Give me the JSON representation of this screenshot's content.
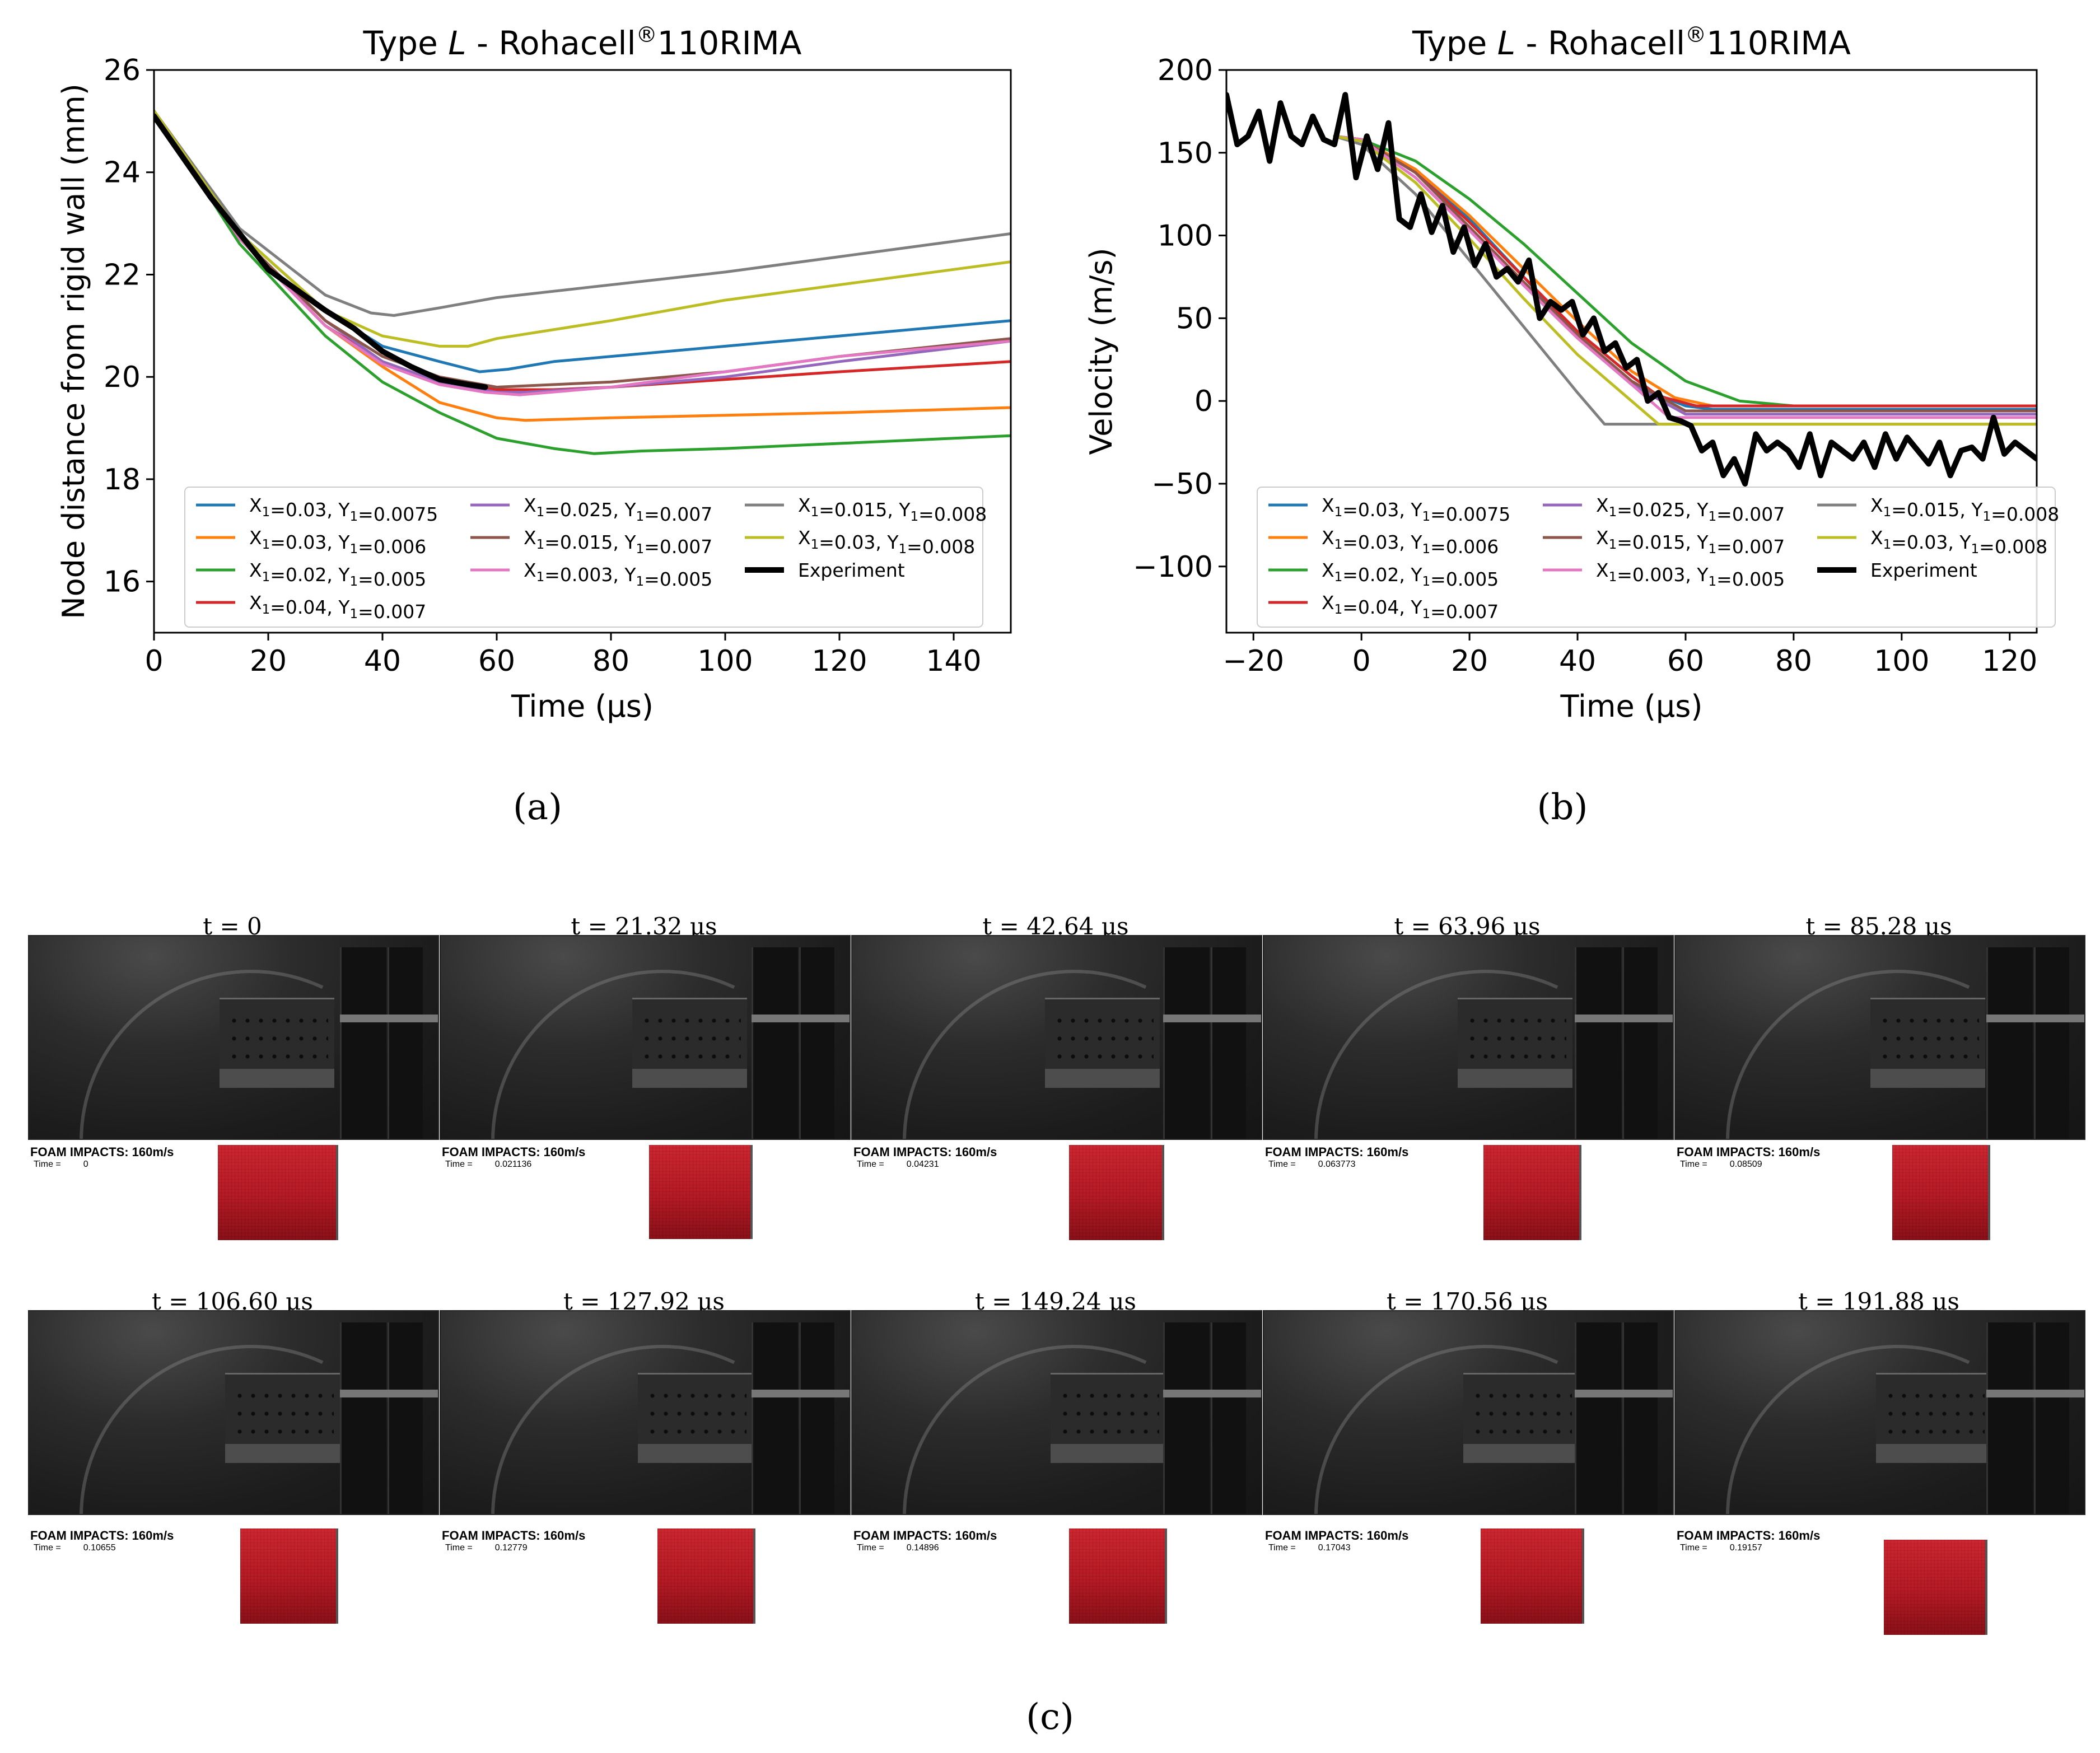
{
  "chart_data": [
    {
      "type": "line",
      "panel": "(a)",
      "title": "Type L - Rohacell®110RIMA",
      "title_parts": {
        "prefix": "Type ",
        "italic": "L",
        "suffix": " - Rohacell",
        "sup": "®",
        "tail": "110RIMA"
      },
      "xlabel": "Time (μs)",
      "ylabel": "Node distance from rigid wall (mm)",
      "xlim": [
        0,
        150
      ],
      "ylim": [
        15,
        26
      ],
      "xticks": [
        0,
        20,
        40,
        60,
        80,
        100,
        120,
        140
      ],
      "yticks": [
        16,
        18,
        20,
        22,
        24,
        26
      ],
      "legend_position": "lower-center",
      "series": [
        {
          "name": "X1=0.03, Y1=0.0075",
          "color": "#1f77b4",
          "x": [
            0,
            15,
            30,
            40,
            50,
            57,
            62,
            70,
            80,
            100,
            120,
            150
          ],
          "y": [
            25.2,
            22.8,
            21.3,
            20.6,
            20.3,
            20.1,
            20.15,
            20.3,
            20.4,
            20.6,
            20.8,
            21.1
          ]
        },
        {
          "name": "X1=0.03, Y1=0.006",
          "color": "#ff7f0e",
          "x": [
            0,
            15,
            30,
            40,
            50,
            60,
            65,
            80,
            100,
            120,
            150
          ],
          "y": [
            25.2,
            22.7,
            21.0,
            20.2,
            19.5,
            19.2,
            19.15,
            19.2,
            19.25,
            19.3,
            19.4
          ]
        },
        {
          "name": "X1=0.02, Y1=0.005",
          "color": "#2ca02c",
          "x": [
            0,
            15,
            30,
            40,
            50,
            60,
            70,
            77,
            85,
            100,
            120,
            150
          ],
          "y": [
            25.2,
            22.6,
            20.8,
            19.9,
            19.3,
            18.8,
            18.6,
            18.5,
            18.55,
            18.6,
            18.7,
            18.85
          ]
        },
        {
          "name": "X1=0.04, Y1=0.007",
          "color": "#d62728",
          "x": [
            0,
            15,
            30,
            40,
            50,
            60,
            70,
            80,
            100,
            120,
            150
          ],
          "y": [
            25.2,
            22.7,
            21.0,
            20.3,
            19.9,
            19.75,
            19.75,
            19.8,
            19.95,
            20.1,
            20.3
          ]
        },
        {
          "name": "X1=0.025, Y1=0.007",
          "color": "#9467bd",
          "x": [
            0,
            15,
            30,
            40,
            50,
            60,
            65,
            80,
            100,
            120,
            150
          ],
          "y": [
            25.2,
            22.7,
            21.1,
            20.3,
            19.9,
            19.7,
            19.7,
            19.8,
            20.0,
            20.3,
            20.7
          ]
        },
        {
          "name": "X1=0.015, Y1=0.007",
          "color": "#8c564b",
          "x": [
            0,
            15,
            30,
            40,
            50,
            60,
            80,
            100,
            120,
            150
          ],
          "y": [
            25.2,
            22.75,
            21.1,
            20.4,
            20.0,
            19.8,
            19.9,
            20.1,
            20.4,
            20.75
          ]
        },
        {
          "name": "X1=0.003, Y1=0.005",
          "color": "#e377c2",
          "x": [
            0,
            15,
            30,
            40,
            50,
            58,
            64,
            80,
            100,
            120,
            150
          ],
          "y": [
            25.2,
            22.7,
            21.0,
            20.25,
            19.85,
            19.7,
            19.65,
            19.8,
            20.1,
            20.4,
            20.7
          ]
        },
        {
          "name": "X1=0.015, Y1=0.008",
          "color": "#7f7f7f",
          "x": [
            0,
            15,
            30,
            38,
            42,
            50,
            60,
            80,
            100,
            120,
            150
          ],
          "y": [
            25.2,
            22.9,
            21.6,
            21.25,
            21.2,
            21.35,
            21.55,
            21.8,
            22.05,
            22.35,
            22.8
          ]
        },
        {
          "name": "X1=0.03, Y1=0.008",
          "color": "#bcbd22",
          "x": [
            0,
            15,
            30,
            40,
            50,
            55,
            60,
            80,
            100,
            120,
            150
          ],
          "y": [
            25.2,
            22.8,
            21.3,
            20.8,
            20.6,
            20.6,
            20.75,
            21.1,
            21.5,
            21.8,
            22.25
          ]
        },
        {
          "name": "Experiment",
          "color": "#000000",
          "x": [
            0,
            10,
            20,
            30,
            35,
            40,
            45,
            50,
            55,
            58
          ],
          "y": [
            25.1,
            23.5,
            22.1,
            21.3,
            20.95,
            20.5,
            20.2,
            19.95,
            19.85,
            19.8
          ]
        }
      ]
    },
    {
      "type": "line",
      "panel": "(b)",
      "title": "Type L - Rohacell®110RIMA",
      "title_parts": {
        "prefix": "Type ",
        "italic": "L",
        "suffix": " - Rohacell",
        "sup": "®",
        "tail": "110RIMA"
      },
      "xlabel": "Time (μs)",
      "ylabel": "Velocity (m/s)",
      "xlim": [
        -25,
        125
      ],
      "ylim": [
        -140,
        200
      ],
      "xticks": [
        -20,
        0,
        20,
        40,
        60,
        80,
        100,
        120
      ],
      "yticks": [
        -100,
        -50,
        0,
        50,
        100,
        150,
        200
      ],
      "legend_position": "lower-center",
      "series": [
        {
          "name": "X1=0.03, Y1=0.0075",
          "color": "#1f77b4",
          "x": [
            -5,
            0,
            10,
            20,
            30,
            40,
            50,
            60,
            65,
            125
          ],
          "y": [
            160,
            158,
            140,
            110,
            75,
            40,
            10,
            -3,
            -5,
            -5
          ]
        },
        {
          "name": "X1=0.03, Y1=0.006",
          "color": "#ff7f0e",
          "x": [
            -5,
            0,
            10,
            20,
            30,
            40,
            50,
            58,
            65,
            125
          ],
          "y": [
            160,
            158,
            140,
            112,
            80,
            48,
            18,
            2,
            -3,
            -3
          ]
        },
        {
          "name": "X1=0.02, Y1=0.005",
          "color": "#2ca02c",
          "x": [
            -5,
            0,
            10,
            20,
            30,
            40,
            50,
            60,
            70,
            80,
            125
          ],
          "y": [
            160,
            158,
            145,
            122,
            95,
            65,
            35,
            12,
            0,
            -3,
            -3
          ]
        },
        {
          "name": "X1=0.04, Y1=0.007",
          "color": "#d62728",
          "x": [
            -5,
            0,
            10,
            20,
            30,
            40,
            50,
            55,
            62,
            125
          ],
          "y": [
            160,
            158,
            138,
            108,
            75,
            42,
            15,
            3,
            -3,
            -3
          ]
        },
        {
          "name": "X1=0.025, Y1=0.007",
          "color": "#9467bd",
          "x": [
            -5,
            0,
            10,
            20,
            30,
            40,
            50,
            60,
            125
          ],
          "y": [
            160,
            158,
            138,
            105,
            70,
            38,
            10,
            -8,
            -8
          ]
        },
        {
          "name": "X1=0.015, Y1=0.007",
          "color": "#8c564b",
          "x": [
            -5,
            0,
            10,
            20,
            30,
            40,
            50,
            60,
            125
          ],
          "y": [
            160,
            158,
            138,
            105,
            72,
            40,
            12,
            -6,
            -6
          ]
        },
        {
          "name": "X1=0.003, Y1=0.005",
          "color": "#e377c2",
          "x": [
            -5,
            0,
            10,
            20,
            30,
            40,
            50,
            57,
            125
          ],
          "y": [
            160,
            158,
            135,
            103,
            70,
            38,
            10,
            -10,
            -10
          ]
        },
        {
          "name": "X1=0.015, Y1=0.008",
          "color": "#7f7f7f",
          "x": [
            -5,
            0,
            10,
            20,
            30,
            40,
            45,
            125
          ],
          "y": [
            160,
            155,
            125,
            85,
            45,
            5,
            -14,
            -14
          ]
        },
        {
          "name": "X1=0.03, Y1=0.008",
          "color": "#bcbd22",
          "x": [
            -5,
            0,
            10,
            20,
            30,
            40,
            50,
            55,
            125
          ],
          "y": [
            160,
            157,
            132,
            98,
            62,
            28,
            0,
            -14,
            -14
          ]
        },
        {
          "name": "Experiment",
          "color": "#000000",
          "x": [
            -25,
            -23,
            -21,
            -19,
            -17,
            -15,
            -13,
            -11,
            -9,
            -7,
            -5,
            -3,
            -1,
            1,
            3,
            5,
            7,
            9,
            11,
            13,
            15,
            17,
            19,
            21,
            23,
            25,
            27,
            29,
            31,
            33,
            35,
            37,
            39,
            41,
            43,
            45,
            47,
            49,
            51,
            53,
            55,
            57,
            59,
            61,
            63,
            65,
            67,
            69,
            71,
            73,
            75,
            77,
            79,
            81,
            83,
            85,
            87,
            89,
            91,
            93,
            95,
            97,
            99,
            101,
            103,
            105,
            107,
            109,
            111,
            113,
            115,
            117,
            119,
            121,
            123,
            125
          ],
          "y": [
            185,
            155,
            160,
            175,
            145,
            180,
            160,
            155,
            172,
            158,
            155,
            185,
            135,
            160,
            140,
            168,
            110,
            105,
            125,
            102,
            118,
            90,
            105,
            82,
            95,
            75,
            80,
            72,
            85,
            50,
            60,
            55,
            60,
            40,
            50,
            30,
            35,
            20,
            25,
            0,
            5,
            -10,
            -12,
            -15,
            -30,
            -25,
            -45,
            -35,
            -50,
            -20,
            -30,
            -25,
            -30,
            -40,
            -20,
            -45,
            -25,
            -30,
            -35,
            -25,
            -40,
            -20,
            -35,
            -22,
            -30,
            -38,
            -25,
            -45,
            -30,
            -28,
            -35,
            -10,
            -32,
            -25,
            -30,
            -35
          ]
        }
      ]
    }
  ],
  "panel_captions": {
    "a": "(a)",
    "b": "(b)",
    "c": "(c)"
  },
  "frames": [
    {
      "title": "t = 0",
      "sim_label": "FOAM IMPACTS: 160m/s",
      "time_label": "Time =",
      "time_value": "0"
    },
    {
      "title": "t = 21.32 μs",
      "sim_label": "FOAM IMPACTS: 160m/s",
      "time_label": "Time =",
      "time_value": "0.021136"
    },
    {
      "title": "t = 42.64 μs",
      "sim_label": "FOAM IMPACTS: 160m/s",
      "time_label": "Time =",
      "time_value": "0.04231"
    },
    {
      "title": "t = 63.96 μs",
      "sim_label": "FOAM IMPACTS: 160m/s",
      "time_label": "Time =",
      "time_value": "0.063773"
    },
    {
      "title": "t = 85.28 μs",
      "sim_label": "FOAM IMPACTS: 160m/s",
      "time_label": "Time =",
      "time_value": "0.08509"
    },
    {
      "title": "t = 106.60 μs",
      "sim_label": "FOAM IMPACTS: 160m/s",
      "time_label": "Time =",
      "time_value": "0.10655"
    },
    {
      "title": "t = 127.92 μs",
      "sim_label": "FOAM IMPACTS: 160m/s",
      "time_label": "Time =",
      "time_value": "0.12779"
    },
    {
      "title": "t = 149.24 μs",
      "sim_label": "FOAM IMPACTS: 160m/s",
      "time_label": "Time =",
      "time_value": "0.14896"
    },
    {
      "title": "t = 170.56 μs",
      "sim_label": "FOAM IMPACTS: 160m/s",
      "time_label": "Time =",
      "time_value": "0.17043"
    },
    {
      "title": "t = 191.88 μs",
      "sim_label": "FOAM IMPACTS: 160m/s",
      "time_label": "Time =",
      "time_value": "0.19157"
    }
  ]
}
